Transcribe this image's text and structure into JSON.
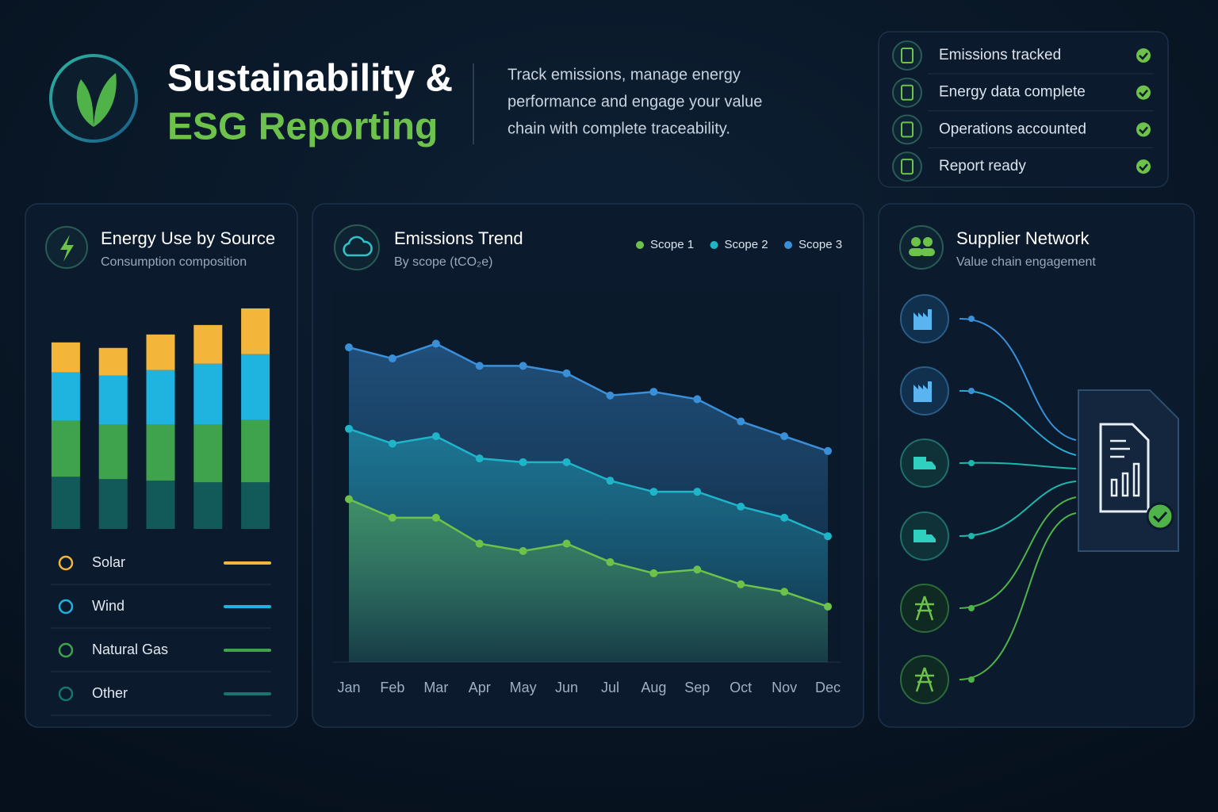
{
  "header": {
    "title_line1": "Sustainability &",
    "title_line2": "ESG Reporting",
    "description": [
      "Track emissions, manage energy",
      "performance and engage your value",
      "chain with complete traceability."
    ]
  },
  "checklist": [
    "Emissions tracked",
    "Energy data complete",
    "Operations accounted",
    "Report ready"
  ],
  "chart_data": [
    {
      "type": "bar",
      "stacked": true,
      "title": "Energy Use by Source",
      "subtitle": "Consumption composition",
      "categories": [
        null,
        null,
        null,
        null,
        null
      ],
      "ylim": [
        0,
        300
      ],
      "series": [
        {
          "name": "Solar",
          "color": "#f4b63a",
          "values": [
            38,
            35,
            45,
            49,
            58
          ]
        },
        {
          "name": "Wind",
          "color": "#1fb3e0",
          "values": [
            61,
            62,
            69,
            77,
            83
          ]
        },
        {
          "name": "Natural Gas",
          "color": "#3fa34d",
          "values": [
            71,
            69,
            71,
            73,
            79
          ]
        },
        {
          "name": "Other",
          "color": "#16756e",
          "values": [
            66,
            63,
            61,
            59,
            59
          ]
        }
      ]
    },
    {
      "type": "line",
      "area": true,
      "title": "Emissions Trend",
      "subtitle": "By scope (tCO₂e)",
      "categories": [
        "Jan",
        "Feb",
        "Mar",
        "Apr",
        "May",
        "Jun",
        "Jul",
        "Aug",
        "Sep",
        "Oct",
        "Nov",
        "Dec"
      ],
      "ylim": [
        0,
        100
      ],
      "series": [
        {
          "name": "Scope 1",
          "color": "#6cc24a",
          "values": [
            44,
            39,
            39,
            32,
            30,
            32,
            27,
            24,
            25,
            21,
            19,
            15
          ]
        },
        {
          "name": "Scope 2",
          "color": "#1fb5c9",
          "values": [
            63,
            59,
            61,
            55,
            54,
            54,
            49,
            46,
            46,
            42,
            39,
            34
          ]
        },
        {
          "name": "Scope 3",
          "color": "#3a8fd9",
          "values": [
            85,
            82,
            86,
            80,
            80,
            78,
            72,
            73,
            71,
            65,
            61,
            57
          ]
        }
      ]
    }
  ],
  "supplier_network": {
    "title": "Supplier Network",
    "subtitle": "Value chain engagement"
  }
}
